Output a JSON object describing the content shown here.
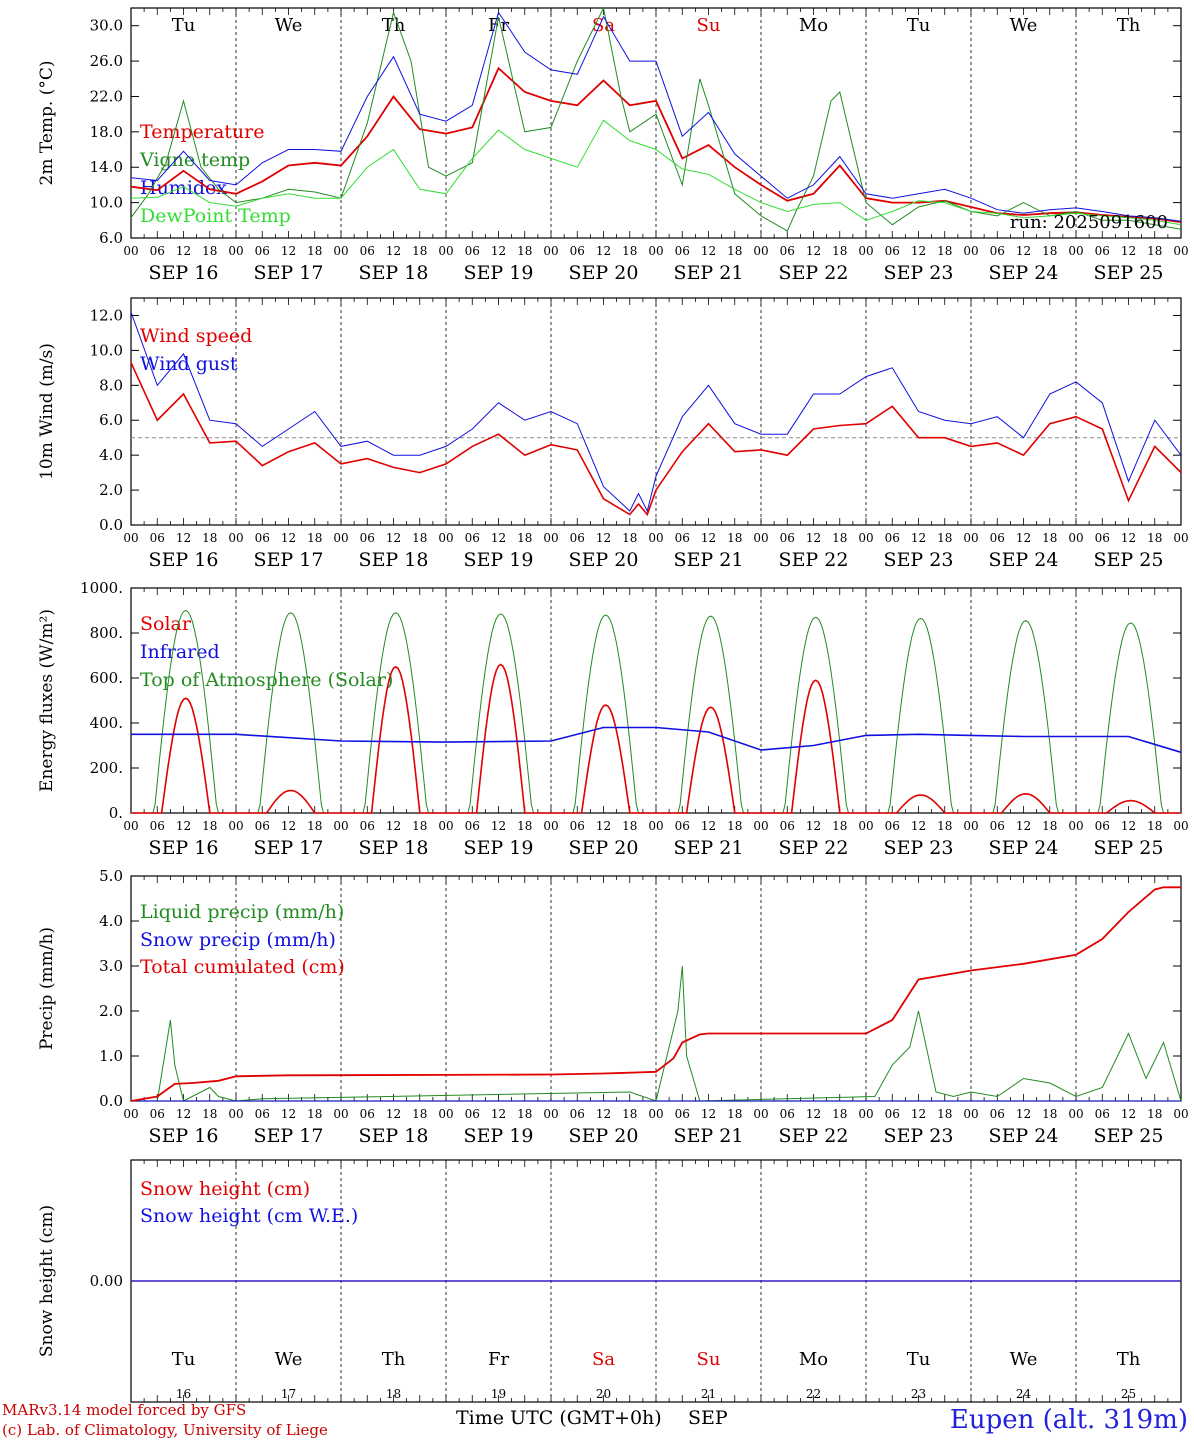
{
  "colors": {
    "red": "#e00000",
    "blue": "#1010e0",
    "green": "#228b22",
    "lightgreen": "#33dd33",
    "black": "#000000",
    "grey": "#888888"
  },
  "day_labels": [
    "Tu",
    "We",
    "Th",
    "Fr",
    "Sa",
    "Su",
    "Mo",
    "Tu",
    "We",
    "Th"
  ],
  "weekend_days": [
    4,
    5
  ],
  "date_labels": [
    "SEP 16",
    "SEP 17",
    "SEP 18",
    "SEP 19",
    "SEP 20",
    "SEP 21",
    "SEP 22",
    "SEP 23",
    "SEP 24",
    "SEP 25"
  ],
  "hour_labels": [
    "00",
    "06",
    "12",
    "18"
  ],
  "bottom_day_numbers": [
    "16",
    "17",
    "18",
    "19",
    "20",
    "21",
    "22",
    "23",
    "24",
    "25"
  ],
  "x_axis_title": "Time UTC (GMT+0h)",
  "x_axis_month": "SEP",
  "run_label": "run: 2025091600",
  "footer": {
    "line1": "MARv3.14 model forced by GFS",
    "line2": "(c) Lab. of Climatology, University of Liege",
    "station": "Eupen (alt. 319m)"
  },
  "chart_data": [
    {
      "type": "line",
      "ylabel": "2m Temp. (°C)",
      "ylim": [
        6,
        32
      ],
      "yticks": [
        "6.0",
        "10.0",
        "14.0",
        "18.0",
        "22.0",
        "26.0",
        "30.0"
      ],
      "x_unit": "hours since 2025-09-16 00 UTC",
      "series": [
        {
          "name": "Temperature",
          "color": "red",
          "x": [
            0,
            6,
            12,
            18,
            24,
            30,
            36,
            42,
            48,
            54,
            60,
            66,
            72,
            78,
            84,
            90,
            96,
            102,
            108,
            114,
            120,
            126,
            132,
            138,
            144,
            150,
            156,
            162,
            168,
            174,
            180,
            186,
            192,
            198,
            204,
            210,
            216,
            222,
            228,
            234,
            240
          ],
          "y": [
            11.8,
            11.4,
            13.6,
            11.5,
            11.0,
            12.4,
            14.2,
            14.5,
            14.2,
            17.5,
            22.0,
            18.3,
            17.8,
            18.5,
            25.2,
            22.5,
            21.5,
            21.0,
            23.8,
            21.0,
            21.5,
            15.0,
            16.5,
            14.0,
            12.0,
            10.2,
            11.0,
            14.2,
            10.5,
            10.0,
            10.0,
            10.2,
            9.5,
            8.8,
            8.6,
            8.8,
            8.9,
            8.6,
            8.4,
            8.2,
            7.8
          ]
        },
        {
          "name": "Vigne temp",
          "color": "green",
          "x": [
            0,
            4,
            8,
            12,
            16,
            20,
            24,
            30,
            36,
            42,
            48,
            54,
            60,
            64,
            68,
            72,
            78,
            84,
            90,
            96,
            102,
            108,
            112,
            114,
            120,
            126,
            130,
            132,
            138,
            144,
            150,
            152,
            156,
            160,
            162,
            168,
            174,
            180,
            186,
            192,
            198,
            204,
            210,
            216,
            222,
            228,
            234,
            240
          ],
          "y": [
            8.3,
            11.0,
            14.5,
            21.5,
            14.0,
            11.5,
            10.0,
            10.5,
            11.5,
            11.2,
            10.5,
            19.0,
            31.5,
            26.0,
            14.0,
            13.0,
            14.5,
            31.0,
            18.0,
            18.5,
            26.0,
            32.0,
            22.0,
            18.0,
            20.0,
            12.0,
            24.0,
            21.0,
            11.0,
            8.5,
            6.8,
            9.0,
            13.0,
            21.5,
            22.5,
            10.0,
            7.5,
            9.5,
            10.2,
            9.0,
            8.5,
            10.0,
            8.5,
            9.0,
            8.0,
            8.0,
            7.5,
            7.0
          ]
        },
        {
          "name": "Humidex",
          "color": "blue",
          "x": [
            0,
            6,
            12,
            18,
            24,
            30,
            36,
            42,
            48,
            54,
            60,
            66,
            72,
            78,
            84,
            90,
            96,
            102,
            108,
            114,
            120,
            126,
            132,
            138,
            144,
            150,
            156,
            162,
            168,
            174,
            180,
            186,
            192,
            198,
            204,
            210,
            216,
            222,
            228,
            234,
            240
          ],
          "y": [
            12.8,
            12.5,
            15.8,
            12.5,
            12.0,
            14.5,
            16.0,
            16.0,
            15.8,
            22.0,
            26.5,
            20.0,
            19.2,
            21.0,
            31.5,
            27.0,
            25.0,
            24.5,
            31.0,
            26.0,
            26.0,
            17.5,
            20.2,
            15.5,
            13.0,
            10.5,
            12.0,
            15.2,
            11.0,
            10.5,
            11.0,
            11.5,
            10.5,
            9.2,
            8.8,
            9.2,
            9.4,
            9.0,
            8.5,
            8.3,
            7.9
          ]
        },
        {
          "name": "DewPoint Temp",
          "color": "lightgreen",
          "x": [
            0,
            6,
            12,
            18,
            24,
            30,
            36,
            42,
            48,
            54,
            60,
            66,
            72,
            78,
            84,
            90,
            96,
            102,
            108,
            114,
            120,
            126,
            132,
            138,
            144,
            150,
            156,
            162,
            168,
            174,
            180,
            186,
            192,
            198,
            204,
            210,
            216,
            222,
            228,
            234,
            240
          ],
          "y": [
            10.5,
            10.6,
            11.8,
            10.0,
            9.6,
            10.5,
            11.0,
            10.5,
            10.5,
            14.0,
            16.0,
            11.5,
            11.0,
            15.0,
            18.2,
            16.0,
            15.0,
            14.0,
            19.3,
            17.0,
            16.0,
            13.8,
            13.2,
            11.5,
            10.0,
            9.0,
            9.8,
            10.0,
            8.0,
            9.0,
            10.2,
            10.0,
            9.0,
            8.8,
            8.3,
            8.5,
            8.8,
            8.5,
            8.3,
            8.0,
            7.5
          ]
        }
      ],
      "run_label_shown": true
    },
    {
      "type": "line",
      "ylabel": "10m Wind (m/s)",
      "ylim": [
        0,
        13
      ],
      "yticks": [
        "0.0",
        "2.0",
        "4.0",
        "6.0",
        "8.0",
        "10.0",
        "12.0"
      ],
      "reference_line": 5.0,
      "series": [
        {
          "name": "Wind speed",
          "color": "red",
          "x": [
            0,
            6,
            12,
            18,
            24,
            30,
            36,
            42,
            48,
            54,
            60,
            66,
            72,
            78,
            84,
            90,
            96,
            102,
            108,
            114,
            116,
            118,
            120,
            126,
            132,
            138,
            144,
            150,
            156,
            162,
            168,
            174,
            180,
            186,
            192,
            198,
            204,
            210,
            216,
            222,
            228,
            234,
            240
          ],
          "y": [
            9.3,
            6.0,
            7.5,
            4.7,
            4.8,
            3.4,
            4.2,
            4.7,
            3.5,
            3.8,
            3.3,
            3.0,
            3.5,
            4.5,
            5.2,
            4.0,
            4.6,
            4.3,
            1.5,
            0.6,
            1.2,
            0.6,
            2.0,
            4.2,
            5.8,
            4.2,
            4.3,
            4.0,
            5.5,
            5.7,
            5.8,
            6.8,
            5.0,
            5.0,
            4.5,
            4.7,
            4.0,
            5.8,
            6.2,
            5.5,
            1.4,
            4.5,
            3.0
          ]
        },
        {
          "name": "Wind gust",
          "color": "blue",
          "x": [
            0,
            6,
            12,
            18,
            24,
            30,
            36,
            42,
            48,
            54,
            60,
            66,
            72,
            78,
            84,
            90,
            96,
            102,
            108,
            114,
            116,
            118,
            120,
            126,
            132,
            138,
            144,
            150,
            156,
            162,
            168,
            174,
            180,
            186,
            192,
            198,
            204,
            210,
            216,
            222,
            228,
            234,
            240
          ],
          "y": [
            12.2,
            8.0,
            9.8,
            6.0,
            5.8,
            4.5,
            5.5,
            6.5,
            4.5,
            4.8,
            4.0,
            4.0,
            4.5,
            5.5,
            7.0,
            6.0,
            6.5,
            5.8,
            2.2,
            0.8,
            1.8,
            0.8,
            2.8,
            6.2,
            8.0,
            5.8,
            5.2,
            5.2,
            7.5,
            7.5,
            8.5,
            9.0,
            6.5,
            6.0,
            5.8,
            6.2,
            5.0,
            7.5,
            8.2,
            7.0,
            2.5,
            6.0,
            4.0
          ]
        }
      ]
    },
    {
      "type": "line",
      "ylabel": "Energy fluxes (W/m²)",
      "ylim": [
        0,
        1000
      ],
      "yticks": [
        "0.",
        "200.",
        "400.",
        "600.",
        "800.",
        "1000."
      ],
      "series": [
        {
          "name": "Solar",
          "color": "red",
          "daily_peaks": [
            510,
            100,
            650,
            660,
            480,
            470,
            590,
            80,
            85,
            55
          ]
        },
        {
          "name": "Infrared",
          "color": "blue",
          "x": [
            0,
            24,
            48,
            72,
            96,
            108,
            120,
            132,
            144,
            156,
            168,
            180,
            192,
            204,
            216,
            228,
            240
          ],
          "y": [
            350,
            350,
            320,
            315,
            320,
            380,
            380,
            360,
            280,
            300,
            345,
            350,
            345,
            340,
            340,
            340,
            270
          ]
        },
        {
          "name": "Top of Atmosphere (Solar)",
          "color": "green",
          "daily_peaks": [
            900,
            890,
            890,
            885,
            880,
            875,
            870,
            865,
            855,
            845
          ]
        }
      ]
    },
    {
      "type": "line",
      "ylabel": "Precip (mm/h)",
      "ylim": [
        0,
        5
      ],
      "yticks": [
        "0.0",
        "1.0",
        "2.0",
        "3.0",
        "4.0",
        "5.0"
      ],
      "series": [
        {
          "name": "Liquid precip (mm/h)",
          "color": "green",
          "x": [
            0,
            6,
            9,
            10,
            12,
            18,
            20,
            24,
            30,
            114,
            120,
            125,
            126,
            127,
            130,
            170,
            174,
            178,
            180,
            184,
            188,
            192,
            198,
            204,
            210,
            216,
            222,
            228,
            232,
            236,
            240
          ],
          "y": [
            0,
            0,
            1.8,
            0.8,
            0,
            0.3,
            0.1,
            0,
            0.05,
            0.2,
            0,
            2.0,
            3.0,
            1.0,
            0,
            0.1,
            0.8,
            1.2,
            2.0,
            0.2,
            0.1,
            0.2,
            0.1,
            0.5,
            0.4,
            0.1,
            0.3,
            1.5,
            0.5,
            1.3,
            0
          ]
        },
        {
          "name": "Snow precip (mm/h)",
          "color": "blue",
          "x": [
            0,
            240
          ],
          "y": [
            0,
            0
          ]
        },
        {
          "name": "Total cumulated (cm)",
          "color": "red",
          "x": [
            0,
            6,
            10,
            14,
            20,
            24,
            36,
            72,
            96,
            108,
            114,
            120,
            124,
            126,
            130,
            132,
            144,
            168,
            174,
            180,
            186,
            192,
            204,
            216,
            222,
            228,
            234,
            236,
            240
          ],
          "y": [
            0,
            0.1,
            0.38,
            0.4,
            0.45,
            0.55,
            0.57,
            0.58,
            0.59,
            0.61,
            0.63,
            0.65,
            0.95,
            1.3,
            1.48,
            1.5,
            1.5,
            1.5,
            1.8,
            2.7,
            2.8,
            2.9,
            3.05,
            3.25,
            3.6,
            4.2,
            4.7,
            4.75,
            4.75
          ]
        }
      ]
    },
    {
      "type": "line",
      "ylabel": "Snow height (cm)",
      "yticks": [
        "0.00"
      ],
      "series": [
        {
          "name": "Snow height (cm)",
          "color": "red",
          "x": [
            0,
            240
          ],
          "y": [
            0,
            0
          ]
        },
        {
          "name": "Snow height (cm W.E.)",
          "color": "blue",
          "x": [
            0,
            240
          ],
          "y": [
            0,
            0
          ]
        }
      ]
    }
  ]
}
